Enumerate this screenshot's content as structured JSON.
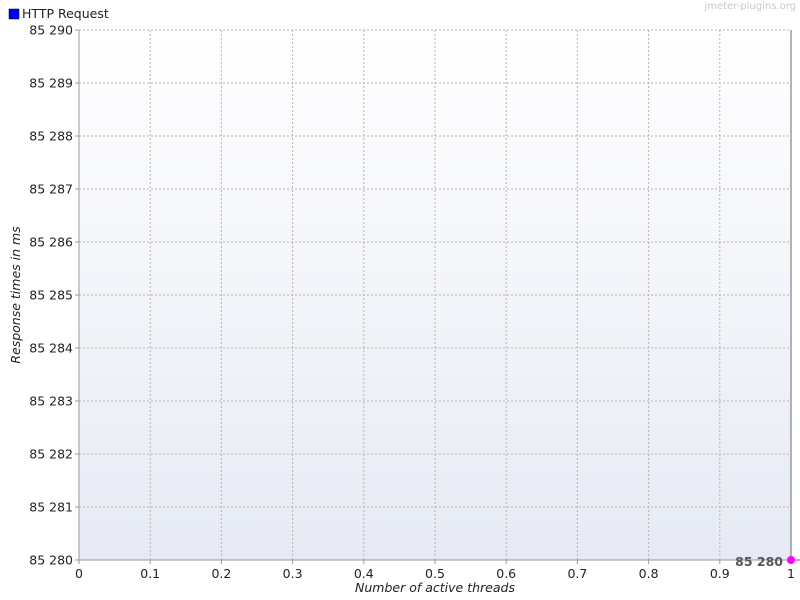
{
  "watermark": "jmeter-plugins.org",
  "legend": {
    "label": "HTTP Request",
    "color": "#0000ff"
  },
  "chart_data": {
    "type": "line",
    "xlabel": "Number of active threads",
    "ylabel": "Response times in ms",
    "xlim": [
      0,
      1
    ],
    "ylim": [
      85280,
      85290
    ],
    "x_ticks": [
      {
        "value": 0,
        "label": "0"
      },
      {
        "value": 0.1,
        "label": "0.1"
      },
      {
        "value": 0.2,
        "label": "0.2"
      },
      {
        "value": 0.3,
        "label": "0.3"
      },
      {
        "value": 0.4,
        "label": "0.4"
      },
      {
        "value": 0.5,
        "label": "0.5"
      },
      {
        "value": 0.6,
        "label": "0.6"
      },
      {
        "value": 0.7,
        "label": "0.7"
      },
      {
        "value": 0.8,
        "label": "0.8"
      },
      {
        "value": 0.9,
        "label": "0.9"
      },
      {
        "value": 1,
        "label": "1"
      }
    ],
    "y_ticks": [
      {
        "value": 85280,
        "label": "85 280"
      },
      {
        "value": 85281,
        "label": "85 281"
      },
      {
        "value": 85282,
        "label": "85 282"
      },
      {
        "value": 85283,
        "label": "85 283"
      },
      {
        "value": 85284,
        "label": "85 284"
      },
      {
        "value": 85285,
        "label": "85 285"
      },
      {
        "value": 85286,
        "label": "85 286"
      },
      {
        "value": 85287,
        "label": "85 287"
      },
      {
        "value": 85288,
        "label": "85 288"
      },
      {
        "value": 85289,
        "label": "85 289"
      },
      {
        "value": 85290,
        "label": "85 290"
      }
    ],
    "grid": true,
    "legend_position": "top-left",
    "series": [
      {
        "name": "HTTP Request",
        "color": "#ff00ff",
        "points": [
          {
            "x": 1,
            "y": 85280,
            "label": "85 280"
          }
        ]
      }
    ]
  }
}
